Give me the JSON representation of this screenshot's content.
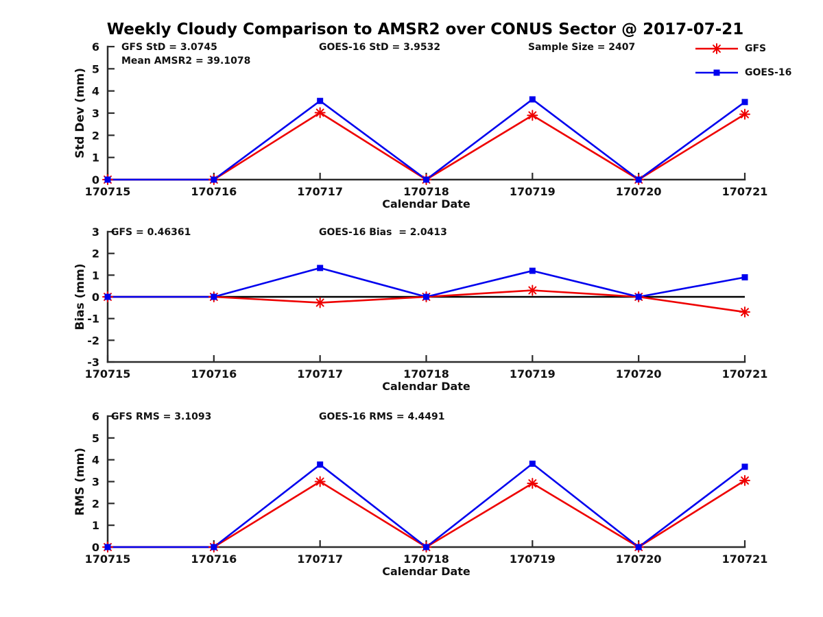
{
  "title": "Weekly Cloudy Comparison to AMSR2 over CONUS Sector @ 2017-07-21",
  "legend": {
    "position": "top-right",
    "items": [
      {
        "label": "GFS",
        "color": "#ee0000",
        "marker": "asterisk"
      },
      {
        "label": "GOES-16",
        "color": "#0000ee",
        "marker": "square"
      }
    ]
  },
  "chart_data": [
    {
      "name": "std-dev",
      "type": "line",
      "title": "",
      "xlabel": "Calendar Date",
      "ylabel": "Std Dev (mm)",
      "ylim": [
        0,
        6
      ],
      "yticks": [
        0,
        1,
        2,
        3,
        4,
        5,
        6
      ],
      "grid": false,
      "categories": [
        "170715",
        "170716",
        "170717",
        "170718",
        "170719",
        "170720",
        "170721"
      ],
      "series": [
        {
          "name": "GFS",
          "color": "#ee0000",
          "marker": "asterisk",
          "values": [
            0,
            0,
            3.02,
            0,
            2.9,
            0,
            2.95
          ]
        },
        {
          "name": "GOES-16",
          "color": "#0000ee",
          "marker": "square",
          "values": [
            0,
            0,
            3.55,
            0,
            3.62,
            0,
            3.5
          ]
        }
      ],
      "annotations": [
        "GFS StD = 3.0745",
        "Mean AMSR2 = 39.1078",
        "GOES-16 StD = 3.9532",
        "Sample Size = 2407"
      ]
    },
    {
      "name": "bias",
      "type": "line",
      "title": "",
      "xlabel": "Calendar Date",
      "ylabel": "Bias (mm)",
      "ylim": [
        -3,
        3
      ],
      "yticks": [
        3,
        2,
        1,
        0,
        -1,
        -2,
        -3
      ],
      "grid": false,
      "zero_line": true,
      "categories": [
        "170715",
        "170716",
        "170717",
        "170718",
        "170719",
        "170720",
        "170721"
      ],
      "series": [
        {
          "name": "GFS",
          "color": "#ee0000",
          "marker": "asterisk",
          "values": [
            0,
            0,
            -0.27,
            0,
            0.3,
            0,
            -0.7
          ]
        },
        {
          "name": "GOES-16",
          "color": "#0000ee",
          "marker": "square",
          "values": [
            0,
            0,
            1.33,
            0,
            1.2,
            0,
            0.9
          ]
        }
      ],
      "annotations": [
        "GFS = 0.46361",
        "GOES-16 Bias  = 2.0413"
      ]
    },
    {
      "name": "rms",
      "type": "line",
      "title": "",
      "xlabel": "Calendar Date",
      "ylabel": "RMS (mm)",
      "ylim": [
        0,
        6
      ],
      "yticks": [
        0,
        1,
        2,
        3,
        4,
        5,
        6
      ],
      "grid": false,
      "categories": [
        "170715",
        "170716",
        "170717",
        "170718",
        "170719",
        "170720",
        "170721"
      ],
      "series": [
        {
          "name": "GFS",
          "color": "#ee0000",
          "marker": "asterisk",
          "values": [
            0,
            0,
            3.0,
            0,
            2.92,
            0,
            3.05
          ]
        },
        {
          "name": "GOES-16",
          "color": "#0000ee",
          "marker": "square",
          "values": [
            0,
            0,
            3.78,
            0,
            3.82,
            0,
            3.68
          ]
        }
      ],
      "annotations": [
        "GFS RMS = 3.1093",
        "GOES-16 RMS = 4.4491"
      ]
    }
  ]
}
